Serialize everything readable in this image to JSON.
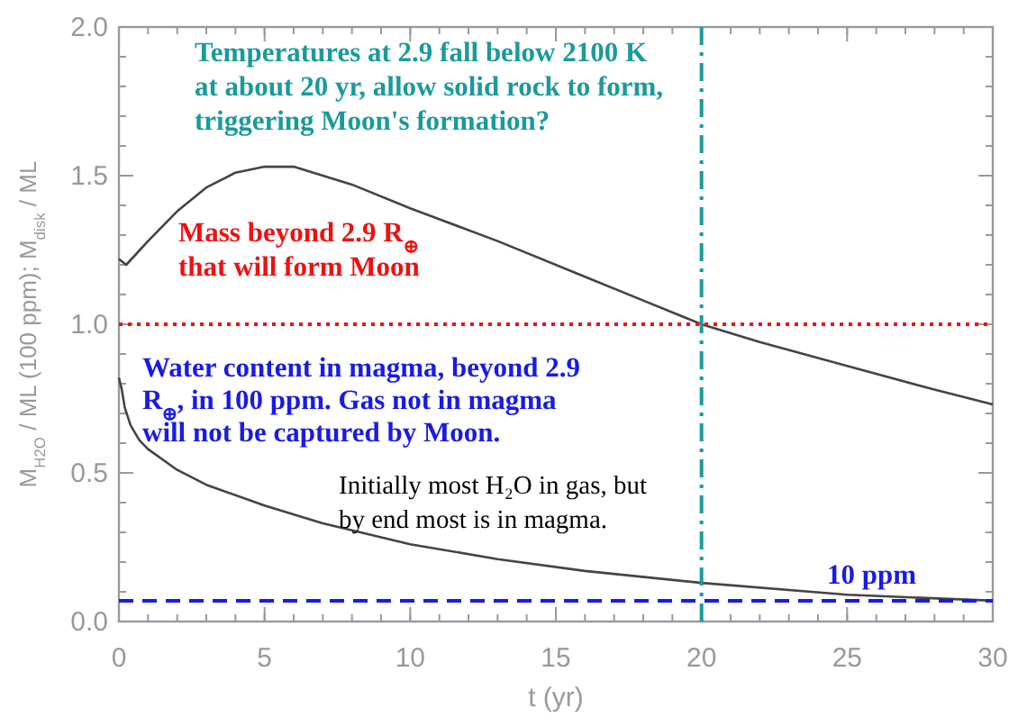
{
  "chart_data": {
    "type": "line",
    "xlabel": "t (yr)",
    "ylabel": "M$_{H2O}$ / ML (100 ppm); M$_{disk}$ / ML",
    "xlim": [
      0,
      30
    ],
    "ylim": [
      0,
      2
    ],
    "xticks": [
      0,
      5,
      10,
      15,
      20,
      25,
      30
    ],
    "yticks": [
      {
        "value": 0,
        "label": "0.0"
      },
      {
        "value": 0.5,
        "label": "0.5"
      },
      {
        "value": 1,
        "label": "1.0"
      },
      {
        "value": 1.5,
        "label": "1.5"
      },
      {
        "value": 2,
        "label": "2.0"
      }
    ],
    "grid": false,
    "series": [
      {
        "color": "#444444",
        "x": [
          0,
          0.25,
          1,
          2,
          3,
          4,
          5,
          6,
          8,
          10,
          13,
          16,
          18,
          20,
          22,
          25,
          28,
          30
        ],
        "values": [
          1.22,
          1.2,
          1.28,
          1.38,
          1.46,
          1.51,
          1.53,
          1.53,
          1.47,
          1.39,
          1.28,
          1.16,
          1.08,
          1.0,
          0.94,
          0.86,
          0.78,
          0.73
        ]
      },
      {
        "color": "#444444",
        "x": [
          0,
          0.1,
          0.2,
          0.4,
          0.7,
          1,
          2,
          3,
          5,
          7,
          10,
          13,
          16,
          20,
          25,
          30
        ],
        "values": [
          0.82,
          0.78,
          0.72,
          0.66,
          0.61,
          0.58,
          0.51,
          0.46,
          0.39,
          0.33,
          0.26,
          0.21,
          0.17,
          0.13,
          0.09,
          0.07
        ]
      }
    ],
    "ref_lines": [
      {
        "axis": "x",
        "value": 20,
        "label": "Temperatures at 2.9 fall below 2100 K\nat about 20 yr, allow solid rock to form,\ntriggering Moon's formation?",
        "color": "#1a9a9a",
        "line_style": "dashdot"
      },
      {
        "axis": "y",
        "value": 1.0,
        "label": "Mass beyond 2.9 R$_{⊕}$\nthat will form Moon",
        "color": "#ee1111",
        "line_style": "dotted"
      },
      {
        "axis": "y",
        "value": 0.07,
        "label": "10 ppm",
        "color": "#1a1ae6",
        "line_style": "dashed"
      }
    ],
    "annotations": [
      "Water content in magma, beyond 2.9\nR$_{⊕}$, in 100 ppm.  Gas not in magma\nwill not be captured by Moon.",
      "Initially most H₂O in gas, but\nby end most is in magma."
    ]
  }
}
